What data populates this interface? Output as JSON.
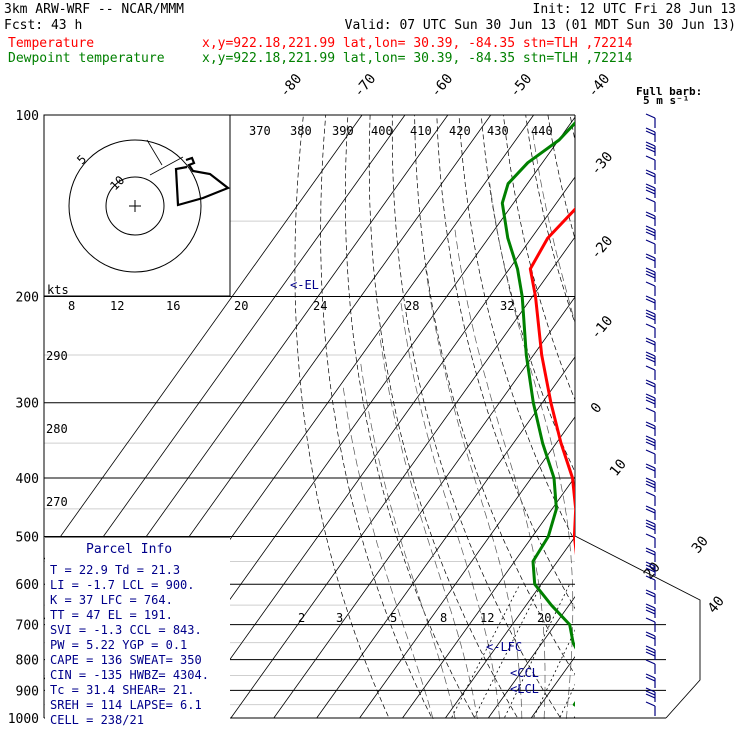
{
  "header": {
    "model": "3km ARW-WRF -- NCAR/MMM",
    "init": "Init: 12 UTC Fri 28 Jun 13",
    "fcst": "Fcst:    43 h",
    "valid": "Valid: 07 UTC Sun 30 Jun 13 (01 MDT Sun 30 Jun 13)",
    "temp_label": "Temperature",
    "dew_label": "Dewpoint temperature",
    "loc_info": "x,y=922.18,221.99   lat,lon= 30.39, -84.35   stn=TLH ,72214"
  },
  "colors": {
    "temp": "#ff0000",
    "dew": "#008000",
    "info": "#00008b",
    "grid": "#000000"
  },
  "barb_legend": {
    "title": "Full barb:",
    "value": "5 m s⁻¹"
  },
  "hodograph": {
    "ring_labels": [
      "5",
      "10"
    ],
    "units_label": "kts"
  },
  "parcel_info": {
    "title": "Parcel Info",
    "lines": [
      "T  =   22.9  Td =  21.3",
      "LI =   -1.7  LCL =  900.",
      "K  =     37  LFC =  764.",
      "TT =     47  EL  =  191.",
      "SVI =  -1.3  CCL =  843.",
      "PW =   5.22  YGP =   0.1",
      "CAPE =  136  SWEAT=  350",
      "CIN =  -135  HWBZ= 4304.",
      "Tc =   31.4  SHEAR=  21.",
      "SREH =  114  LAPSE=  6.1",
      "CELL = 238/21"
    ]
  },
  "chart_data": {
    "type": "line",
    "title": "",
    "pressure_levels": [
      100,
      200,
      300,
      400,
      500,
      600,
      700,
      800,
      900,
      1000
    ],
    "isotherm_labels": [
      "-80",
      "-70",
      "-60",
      "-50",
      "-40",
      "-30",
      "-20",
      "-10",
      "0",
      "10",
      "20",
      "30",
      "40"
    ],
    "dry_adiabat_labels": [
      "370",
      "380",
      "390",
      "400",
      "410",
      "420",
      "430",
      "440",
      "290",
      "280",
      "270"
    ],
    "mixing_ratio_labels": [
      "8",
      "12",
      "16",
      "20",
      "24",
      "28",
      "32",
      "2",
      "3",
      "5",
      "8",
      "12",
      "20"
    ],
    "level_markers": [
      "<-EL",
      "<-LFC",
      "<CCL",
      "<LCL"
    ],
    "series": [
      {
        "name": "Temperature",
        "points": [
          [
            1000,
            23
          ],
          [
            975,
            23.6
          ],
          [
            950,
            22.2
          ],
          [
            925,
            20.9
          ],
          [
            900,
            19.2
          ],
          [
            850,
            16.6
          ],
          [
            800,
            14.1
          ],
          [
            750,
            10.6
          ],
          [
            700,
            7.4
          ],
          [
            650,
            3.6
          ],
          [
            600,
            -0.3
          ],
          [
            550,
            -5.4
          ],
          [
            500,
            -10.2
          ],
          [
            450,
            -14.5
          ],
          [
            400,
            -20.4
          ],
          [
            350,
            -28.9
          ],
          [
            300,
            -38
          ],
          [
            250,
            -48.1
          ],
          [
            200,
            -59.3
          ],
          [
            180,
            -65.1
          ],
          [
            160,
            -66.2
          ],
          [
            140,
            -64.3
          ],
          [
            130,
            -61.4
          ],
          [
            120,
            -62.8
          ],
          [
            110,
            -60.2
          ],
          [
            100,
            -59.9
          ]
        ]
      },
      {
        "name": "Dewpoint temperature",
        "points": [
          [
            1000,
            21.3
          ],
          [
            975,
            21.6
          ],
          [
            950,
            17.8
          ],
          [
            925,
            17.8
          ],
          [
            900,
            16.8
          ],
          [
            850,
            14.9
          ],
          [
            800,
            12.1
          ],
          [
            750,
            7.2
          ],
          [
            700,
            3.4
          ],
          [
            650,
            -4.1
          ],
          [
            600,
            -11.5
          ],
          [
            550,
            -15.7
          ],
          [
            500,
            -16.3
          ],
          [
            450,
            -19
          ],
          [
            400,
            -24.7
          ],
          [
            350,
            -33.2
          ],
          [
            300,
            -42.1
          ],
          [
            250,
            -51.7
          ],
          [
            200,
            -62.4
          ],
          [
            180,
            -68.1
          ],
          [
            160,
            -75.5
          ],
          [
            140,
            -82.6
          ],
          [
            130,
            -84.5
          ],
          [
            120,
            -83.4
          ],
          [
            110,
            -79.9
          ],
          [
            100,
            -78.6
          ]
        ]
      }
    ],
    "wind_barbs_note": "wind barbs at right edge, full barb 5 m/s"
  }
}
